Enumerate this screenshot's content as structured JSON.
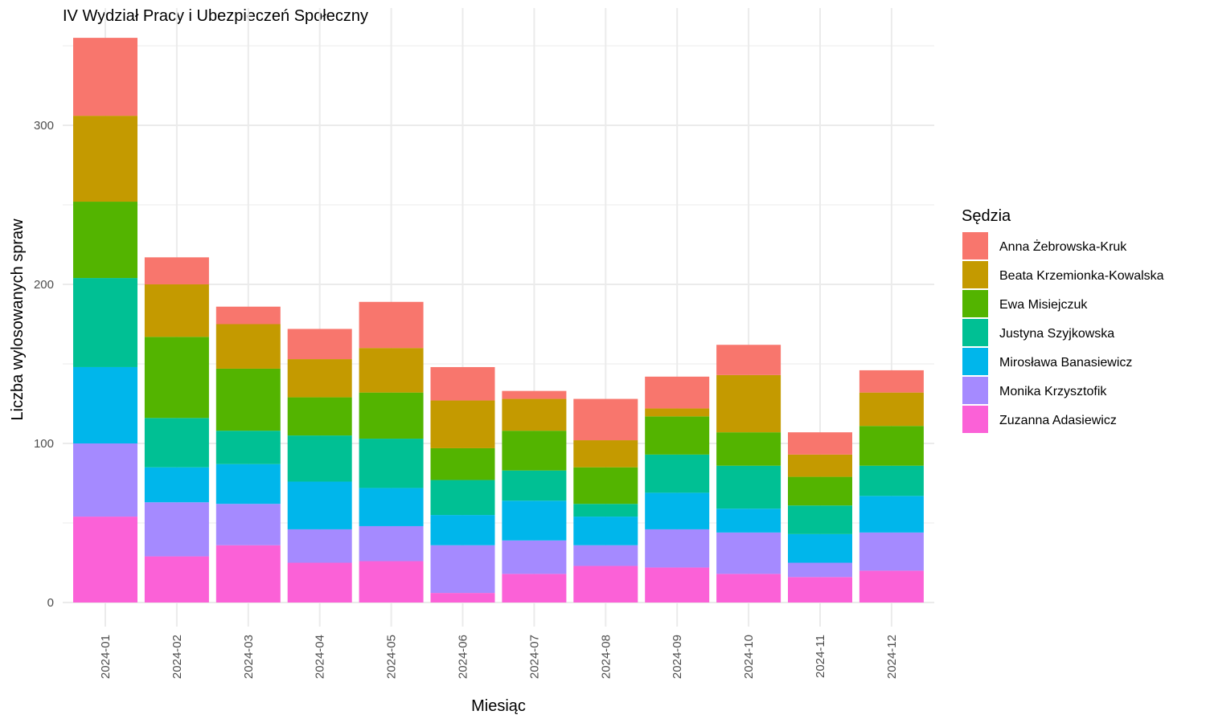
{
  "chart_data": {
    "type": "bar",
    "stacked": true,
    "title": "IV Wydział Pracy i Ubezpieczeń Społeczny",
    "xlabel": "Miesiąc",
    "ylabel": "Liczba wylosowanych spraw",
    "ylim": [
      0,
      360
    ],
    "yticks": [
      0,
      100,
      200,
      300
    ],
    "grid": true,
    "legend": {
      "title": "Sędzia",
      "position": "right"
    },
    "categories": [
      "2024-01",
      "2024-02",
      "2024-03",
      "2024-04",
      "2024-05",
      "2024-06",
      "2024-07",
      "2024-08",
      "2024-09",
      "2024-10",
      "2024-11",
      "2024-12"
    ],
    "series": [
      {
        "name": "Anna Żebrowska-Kruk",
        "color": "#F8766D",
        "values": [
          49,
          17,
          11,
          19,
          29,
          21,
          5,
          26,
          20,
          19,
          14,
          14
        ]
      },
      {
        "name": "Beata Krzemionka-Kowalska",
        "color": "#C49A00",
        "values": [
          54,
          33,
          28,
          24,
          28,
          30,
          20,
          17,
          5,
          36,
          14,
          21
        ]
      },
      {
        "name": "Ewa Misiejczuk",
        "color": "#53B400",
        "values": [
          48,
          51,
          39,
          24,
          29,
          20,
          25,
          23,
          24,
          21,
          18,
          25
        ]
      },
      {
        "name": "Justyna Szyjkowska",
        "color": "#00C094",
        "values": [
          56,
          31,
          21,
          29,
          31,
          22,
          19,
          8,
          24,
          27,
          18,
          19
        ]
      },
      {
        "name": "Mirosława Banasiewicz",
        "color": "#00B6EB",
        "values": [
          48,
          22,
          25,
          30,
          24,
          19,
          25,
          18,
          23,
          15,
          18,
          23
        ]
      },
      {
        "name": "Monika Krzysztofik",
        "color": "#A58AFF",
        "values": [
          46,
          34,
          26,
          21,
          22,
          30,
          21,
          13,
          24,
          26,
          9,
          24
        ]
      },
      {
        "name": "Zuzanna Adasiewicz",
        "color": "#FB61D7",
        "values": [
          54,
          29,
          36,
          25,
          26,
          6,
          18,
          23,
          22,
          18,
          16,
          20
        ]
      }
    ]
  }
}
